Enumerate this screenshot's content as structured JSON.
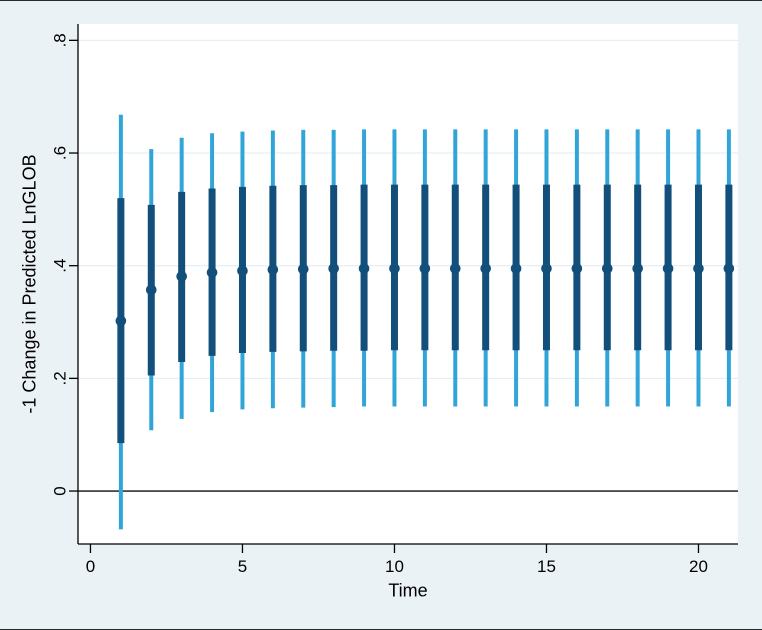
{
  "style": {
    "figure_bg": "#ebf2f5",
    "plot_bg": "#ffffff",
    "navy": "#134f7b",
    "light_blue": "#31a5d8",
    "grid": "#dfecf4",
    "axis": "#000000",
    "zero_line": "#0d0d0d"
  },
  "chart_data": {
    "type": "scatter",
    "subtype": "point-estimates-with-confidence-intervals",
    "xlabel": "Time",
    "ylabel": "-1 Change in Predicted LnGLOB",
    "xlim": [
      -0.41,
      21.3
    ],
    "ylim": [
      -0.094,
      0.829
    ],
    "x_ticks": [
      0,
      5,
      10,
      15,
      20
    ],
    "x_tick_labels": [
      "0",
      "5",
      "10",
      "15",
      "20"
    ],
    "y_tick_values": [
      0,
      0.2,
      0.4,
      0.6,
      0.8
    ],
    "y_tick_labels": [
      "0",
      ".2",
      ".4",
      ".6",
      ".8"
    ],
    "grid": "horizontal",
    "legend": "none",
    "zero_reference_line": 0,
    "x": [
      1,
      2,
      3,
      4,
      5,
      6,
      7,
      8,
      9,
      10,
      11,
      12,
      13,
      14,
      15,
      16,
      17,
      18,
      19,
      20,
      21
    ],
    "series": [
      {
        "name": "point_estimate",
        "marker": "circle",
        "values": [
          0.302,
          0.357,
          0.381,
          0.388,
          0.391,
          0.393,
          0.394,
          0.395,
          0.395,
          0.395,
          0.395,
          0.395,
          0.395,
          0.395,
          0.395,
          0.395,
          0.395,
          0.395,
          0.395,
          0.395,
          0.395
        ]
      },
      {
        "name": "inner_interval",
        "type": "range",
        "low": [
          0.085,
          0.205,
          0.229,
          0.24,
          0.245,
          0.247,
          0.248,
          0.249,
          0.249,
          0.25,
          0.25,
          0.25,
          0.25,
          0.25,
          0.25,
          0.25,
          0.25,
          0.25,
          0.25,
          0.25,
          0.25
        ],
        "high": [
          0.52,
          0.508,
          0.531,
          0.537,
          0.54,
          0.542,
          0.543,
          0.543,
          0.544,
          0.544,
          0.544,
          0.544,
          0.544,
          0.544,
          0.544,
          0.544,
          0.544,
          0.544,
          0.544,
          0.544,
          0.544
        ]
      },
      {
        "name": "outer_interval",
        "type": "range",
        "low": [
          -0.068,
          0.108,
          0.128,
          0.14,
          0.145,
          0.147,
          0.148,
          0.149,
          0.15,
          0.15,
          0.15,
          0.15,
          0.15,
          0.15,
          0.15,
          0.15,
          0.15,
          0.15,
          0.15,
          0.15,
          0.15
        ],
        "high": [
          0.668,
          0.607,
          0.627,
          0.635,
          0.638,
          0.64,
          0.641,
          0.641,
          0.642,
          0.642,
          0.642,
          0.642,
          0.642,
          0.642,
          0.642,
          0.642,
          0.642,
          0.642,
          0.642,
          0.642,
          0.642
        ]
      }
    ]
  }
}
